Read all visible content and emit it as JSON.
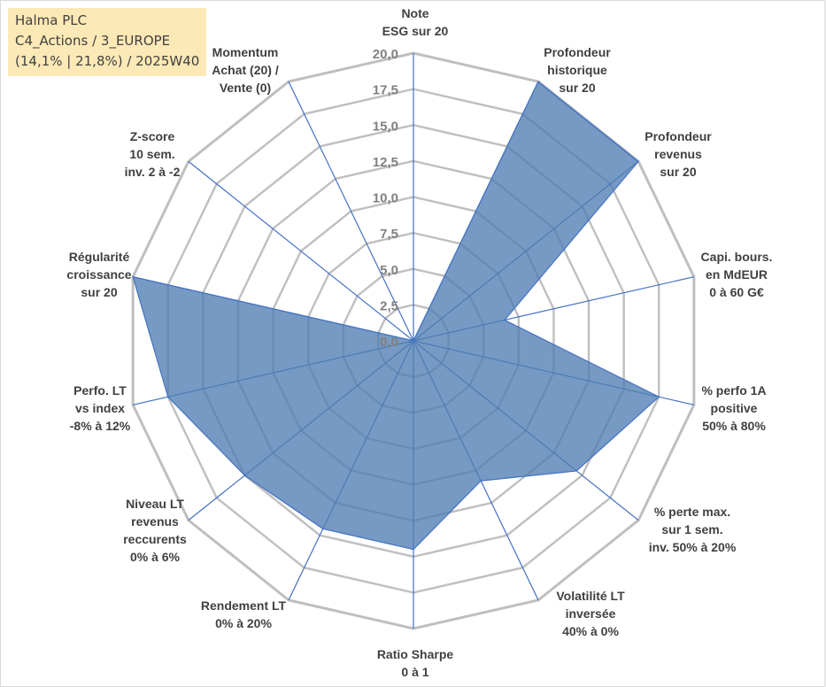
{
  "title_box": {
    "line1": "Halma PLC",
    "line2": "C4_Actions / 3_EUROPE",
    "line3": "(14,1% | 21,8%) / 2025W40"
  },
  "colors": {
    "fill": "#4f7db2",
    "stroke": "#4472c4",
    "grid": "#bfbfbf",
    "spoke": "#4472c4",
    "tick": "#808080",
    "label": "#404040",
    "title_bg": "#fde9b6"
  },
  "chart_data": {
    "type": "radar",
    "title": "Halma PLC",
    "rmin": 0,
    "rmax": 20,
    "tick_step": 2.5,
    "tick_labels": [
      "0,0",
      "2,5",
      "5,0",
      "7,5",
      "10,0",
      "12,5",
      "15,0",
      "17,5",
      "20,0"
    ],
    "axes": [
      {
        "label": [
          "Note",
          "ESG sur 20"
        ],
        "value": 0
      },
      {
        "label": [
          "Profondeur",
          "historique",
          "sur 20"
        ],
        "value": 20
      },
      {
        "label": [
          "Profondeur",
          "revenus",
          "sur 20"
        ],
        "value": 20
      },
      {
        "label": [
          "Capi. bours.",
          "en MdEUR",
          "0 à 60 G€"
        ],
        "value": 6.5
      },
      {
        "label": [
          "% perfo 1A",
          "positive",
          "50% à 80%"
        ],
        "value": 17.5
      },
      {
        "label": [
          "% perte max.",
          "sur 1 sem.",
          "inv. 50% à 20%"
        ],
        "value": 14.5
      },
      {
        "label": [
          "Volatilité LT",
          "inversée",
          "40% à 0%"
        ],
        "value": 10.8
      },
      {
        "label": [
          "Ratio Sharpe",
          "0 à 1"
        ],
        "value": 14.5
      },
      {
        "label": [
          "Rendement LT",
          "0% à 20%"
        ],
        "value": 14.5
      },
      {
        "label": [
          "Niveau LT",
          "revenus",
          "reccurents",
          "0% à 6%"
        ],
        "value": 15
      },
      {
        "label": [
          "Perfo. LT",
          "vs index",
          "-8% à 12%"
        ],
        "value": 17.5
      },
      {
        "label": [
          "Régularité",
          "croissance",
          "sur 20"
        ],
        "value": 20
      },
      {
        "label": [
          "Z-score",
          "10 sem.",
          "inv. 2 à -2"
        ],
        "value": 0
      },
      {
        "label": [
          "Momentum",
          "Achat (20) /",
          "Vente (0)"
        ],
        "value": 0
      }
    ]
  }
}
